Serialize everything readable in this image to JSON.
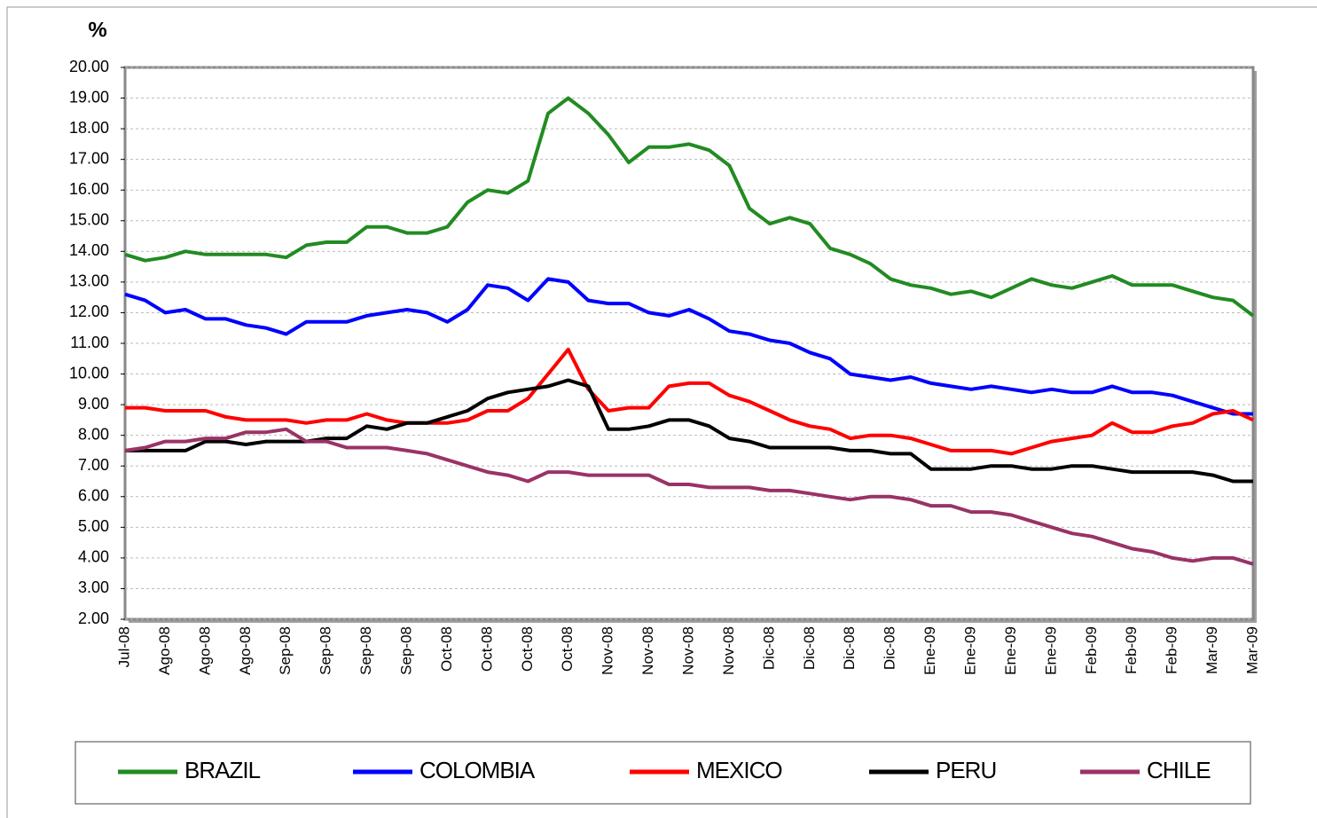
{
  "chart_data": {
    "type": "line",
    "y_label": "%",
    "categories": [
      "Jul-08",
      null,
      "Ago-08",
      null,
      "Ago-08",
      null,
      "Ago-08",
      null,
      "Sep-08",
      null,
      "Sep-08",
      null,
      "Sep-08",
      null,
      "Sep-08",
      null,
      "Oct-08",
      null,
      "Oct-08",
      null,
      "Oct-08",
      null,
      "Oct-08",
      null,
      "Nov-08",
      null,
      "Nov-08",
      null,
      "Nov-08",
      null,
      "Nov-08",
      null,
      "Dic-08",
      null,
      "Dic-08",
      null,
      "Dic-08",
      null,
      "Dic-08",
      null,
      "Ene-09",
      null,
      "Ene-09",
      null,
      "Ene-09",
      null,
      "Ene-09",
      null,
      "Feb-09",
      null,
      "Feb-09",
      null,
      "Feb-09",
      null,
      "Mar-09",
      null,
      "Mar-09"
    ],
    "series": [
      {
        "name": "BRAZIL",
        "color": "#228b22",
        "values": [
          13.9,
          13.7,
          13.8,
          14.0,
          13.9,
          13.9,
          13.9,
          13.9,
          13.8,
          14.2,
          14.3,
          14.3,
          14.8,
          14.8,
          14.6,
          14.6,
          14.8,
          15.6,
          16.0,
          15.9,
          16.3,
          18.5,
          19.0,
          18.5,
          17.8,
          16.9,
          17.4,
          17.4,
          17.5,
          17.3,
          16.8,
          15.4,
          14.9,
          15.1,
          14.9,
          14.1,
          13.9,
          13.6,
          13.1,
          12.9,
          12.8,
          12.6,
          12.7,
          12.5,
          12.8,
          13.1,
          12.9,
          12.8,
          13.0,
          13.2,
          12.9,
          12.9,
          12.9,
          12.7,
          12.5,
          12.4,
          11.9
        ]
      },
      {
        "name": "COLOMBIA",
        "color": "#0000ff",
        "values": [
          12.6,
          12.4,
          12.0,
          12.1,
          11.8,
          11.8,
          11.6,
          11.5,
          11.3,
          11.7,
          11.7,
          11.7,
          11.9,
          12.0,
          12.1,
          12.0,
          11.7,
          12.1,
          12.9,
          12.8,
          12.4,
          13.1,
          13.0,
          12.4,
          12.3,
          12.3,
          12.0,
          11.9,
          12.1,
          11.8,
          11.4,
          11.3,
          11.1,
          11.0,
          10.7,
          10.5,
          10.0,
          9.9,
          9.8,
          9.9,
          9.7,
          9.6,
          9.5,
          9.6,
          9.5,
          9.4,
          9.5,
          9.4,
          9.4,
          9.6,
          9.4,
          9.4,
          9.3,
          9.1,
          8.9,
          8.7,
          8.7
        ]
      },
      {
        "name": "MEXICO",
        "color": "#ff0000",
        "values": [
          8.9,
          8.9,
          8.8,
          8.8,
          8.8,
          8.6,
          8.5,
          8.5,
          8.5,
          8.4,
          8.5,
          8.5,
          8.7,
          8.5,
          8.4,
          8.4,
          8.4,
          8.5,
          8.8,
          8.8,
          9.2,
          10.0,
          10.8,
          9.5,
          8.8,
          8.9,
          8.9,
          9.6,
          9.7,
          9.7,
          9.3,
          9.1,
          8.8,
          8.5,
          8.3,
          8.2,
          7.9,
          8.0,
          8.0,
          7.9,
          7.7,
          7.5,
          7.5,
          7.5,
          7.4,
          7.6,
          7.8,
          7.9,
          8.0,
          8.4,
          8.1,
          8.1,
          8.3,
          8.4,
          8.7,
          8.8,
          8.5
        ]
      },
      {
        "name": "PERU",
        "color": "#000000",
        "values": [
          7.5,
          7.5,
          7.5,
          7.5,
          7.8,
          7.8,
          7.7,
          7.8,
          7.8,
          7.8,
          7.9,
          7.9,
          8.3,
          8.2,
          8.4,
          8.4,
          8.6,
          8.8,
          9.2,
          9.4,
          9.5,
          9.6,
          9.8,
          9.6,
          8.2,
          8.2,
          8.3,
          8.5,
          8.5,
          8.3,
          7.9,
          7.8,
          7.6,
          7.6,
          7.6,
          7.6,
          7.5,
          7.5,
          7.4,
          7.4,
          6.9,
          6.9,
          6.9,
          7.0,
          7.0,
          6.9,
          6.9,
          7.0,
          7.0,
          6.9,
          6.8,
          6.8,
          6.8,
          6.8,
          6.7,
          6.5,
          6.5
        ]
      },
      {
        "name": "CHILE",
        "color": "#993366",
        "values": [
          7.5,
          7.6,
          7.8,
          7.8,
          7.9,
          7.9,
          8.1,
          8.1,
          8.2,
          7.8,
          7.8,
          7.6,
          7.6,
          7.6,
          7.5,
          7.4,
          7.2,
          7.0,
          6.8,
          6.7,
          6.5,
          6.8,
          6.8,
          6.7,
          6.7,
          6.7,
          6.7,
          6.4,
          6.4,
          6.3,
          6.3,
          6.3,
          6.2,
          6.2,
          6.1,
          6.0,
          5.9,
          6.0,
          6.0,
          5.9,
          5.7,
          5.7,
          5.5,
          5.5,
          5.4,
          5.2,
          5.0,
          4.8,
          4.7,
          4.5,
          4.3,
          4.2,
          4.0,
          3.9,
          4.0,
          4.0,
          3.8
        ]
      }
    ],
    "ylim": [
      2,
      20
    ],
    "yticks": [
      {
        "value": 2,
        "label": "2.00"
      },
      {
        "value": 3,
        "label": "3.00"
      },
      {
        "value": 4,
        "label": "4.00"
      },
      {
        "value": 5,
        "label": "5.00"
      },
      {
        "value": 6,
        "label": "6.00"
      },
      {
        "value": 7,
        "label": "7.00"
      },
      {
        "value": 8,
        "label": "8.00"
      },
      {
        "value": 9,
        "label": "9.00"
      },
      {
        "value": 10,
        "label": "10.00"
      },
      {
        "value": 11,
        "label": "11.00"
      },
      {
        "value": 12,
        "label": "12.00"
      },
      {
        "value": 13,
        "label": "13.00"
      },
      {
        "value": 14,
        "label": "14.00"
      },
      {
        "value": 15,
        "label": "15.00"
      },
      {
        "value": 16,
        "label": "16.00"
      },
      {
        "value": 17,
        "label": "17.00"
      },
      {
        "value": 18,
        "label": "18.00"
      },
      {
        "value": 19,
        "label": "19.00"
      },
      {
        "value": 20,
        "label": "20.00"
      }
    ],
    "grid": true,
    "legend": "bottom"
  }
}
